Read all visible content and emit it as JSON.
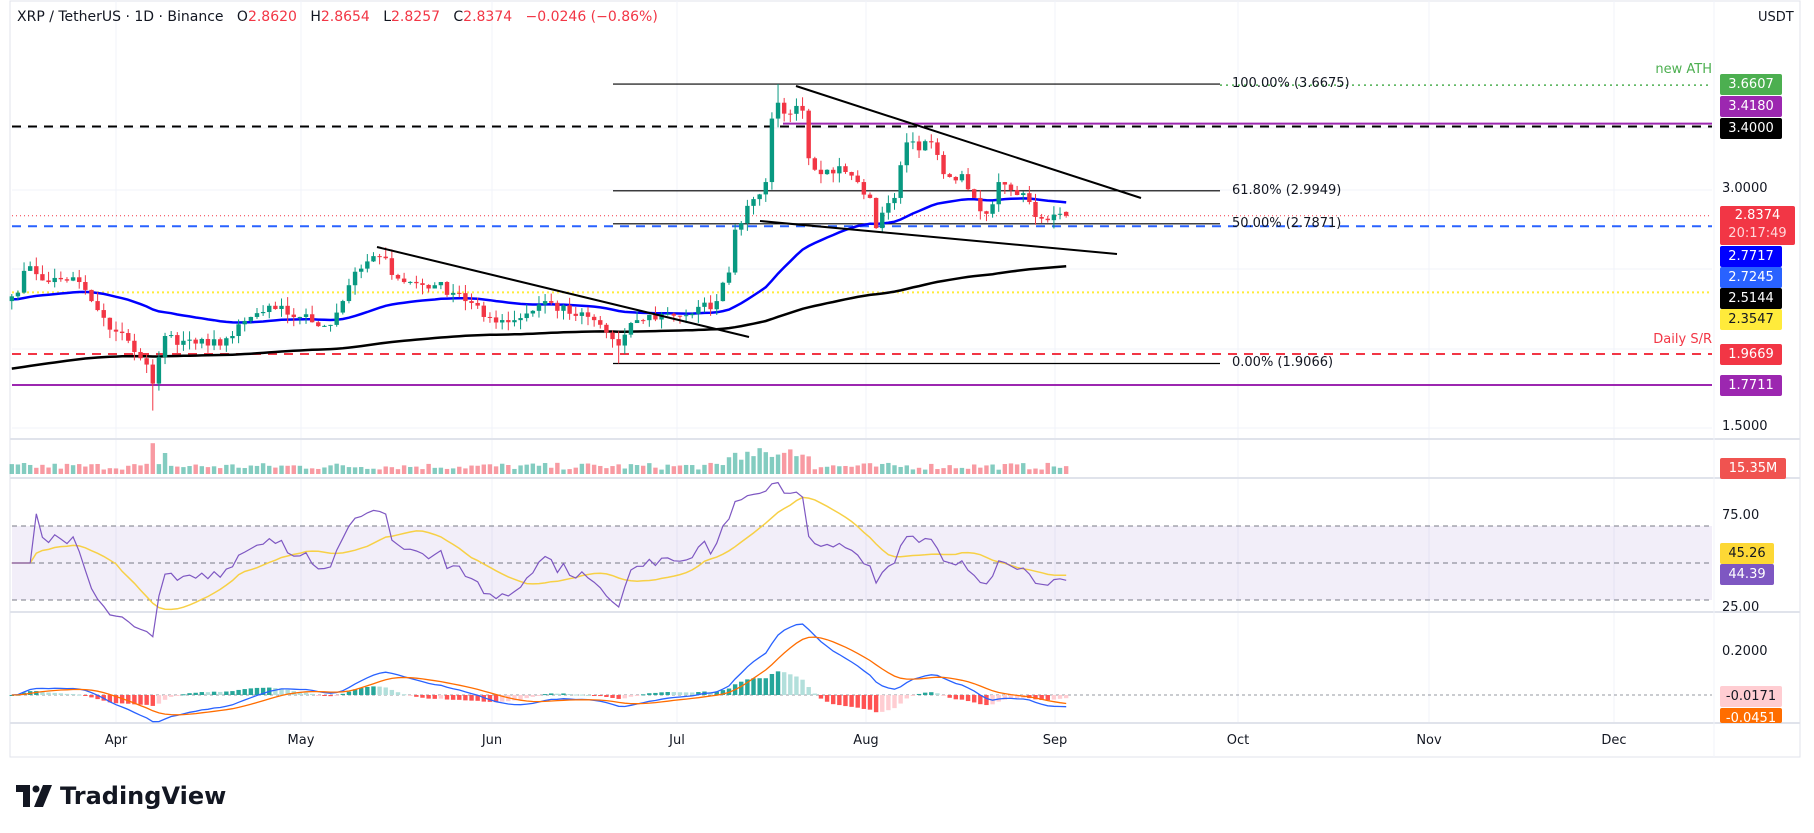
{
  "header": {
    "symbol": "XRP / TetherUS · 1D · Binance",
    "o_label": "O",
    "o": "2.8620",
    "h_label": "H",
    "h": "2.8654",
    "l_label": "L",
    "l": "2.8257",
    "c_label": "C",
    "c": "2.8374",
    "change": "−0.0246 (−0.86%)",
    "currency": "USDT"
  },
  "price_axis": {
    "ticks": [
      "3.0000",
      "1.5000"
    ],
    "labels": [
      {
        "text": "3.6607",
        "color": "#4caf50"
      },
      {
        "text": "3.4180",
        "color": "#9c27b0"
      },
      {
        "text": "3.4000",
        "color": "#000000"
      },
      {
        "text": "2.7717",
        "color": "#0000ff"
      },
      {
        "text": "2.7245",
        "color": "#2962ff"
      },
      {
        "text": "2.5144",
        "color": "#000000"
      },
      {
        "text": "2.3547",
        "color": "#ffeb3b"
      },
      {
        "text": "1.9669",
        "color": "#f23645"
      },
      {
        "text": "1.7711",
        "color": "#9c27b0"
      }
    ],
    "current_price": "2.8374",
    "countdown": "20:17:49"
  },
  "annotations": {
    "new_ath": "new ATH",
    "daily_sr": "Daily S/R",
    "fib": [
      "100.00% (3.6675)",
      "61.80% (2.9949)",
      "50.00% (2.7871)",
      "0.00% (1.9066)"
    ]
  },
  "volume": {
    "label": "15.35M"
  },
  "rsi": {
    "ticks": [
      "75.00",
      "25.00"
    ],
    "ma_value": "45.26",
    "rsi_value": "44.39"
  },
  "macd": {
    "ticks": [
      "0.2000"
    ],
    "histogram_value": "-0.0171",
    "signal_value": "-0.0451"
  },
  "x_axis": {
    "months": [
      "Apr",
      "May",
      "Jun",
      "Jul",
      "Aug",
      "Sep",
      "Oct",
      "Nov",
      "Dec"
    ]
  },
  "brand": {
    "name": "TradingView"
  },
  "colors": {
    "up": "#089981",
    "down": "#f23645",
    "ema50": "#0000ff",
    "ema200": "#000000",
    "rsi": "#7e57c2",
    "rsi_ma": "#f7d046",
    "macd": "#2962ff",
    "signal": "#ff6d00"
  },
  "chart_data": {
    "type": "candlestick",
    "symbol": "XRP/USDT",
    "interval": "1D",
    "approx_closes": [
      [
        "03-15",
        2.33
      ],
      [
        "03-18",
        2.52
      ],
      [
        "03-21",
        2.42
      ],
      [
        "03-25",
        2.45
      ],
      [
        "03-28",
        2.3
      ],
      [
        "03-31",
        2.12
      ],
      [
        "04-03",
        2.05
      ],
      [
        "04-06",
        1.9
      ],
      [
        "04-07",
        1.78
      ],
      [
        "04-09",
        2.08
      ],
      [
        "04-12",
        2.05
      ],
      [
        "04-16",
        2.02
      ],
      [
        "04-20",
        2.08
      ],
      [
        "04-23",
        2.2
      ],
      [
        "04-27",
        2.25
      ],
      [
        "05-01",
        2.2
      ],
      [
        "05-06",
        2.15
      ],
      [
        "05-09",
        2.4
      ],
      [
        "05-12",
        2.55
      ],
      [
        "05-14",
        2.58
      ],
      [
        "05-18",
        2.42
      ],
      [
        "05-23",
        2.4
      ],
      [
        "05-27",
        2.35
      ],
      [
        "05-31",
        2.2
      ],
      [
        "06-05",
        2.18
      ],
      [
        "06-10",
        2.3
      ],
      [
        "06-14",
        2.22
      ],
      [
        "06-18",
        2.18
      ],
      [
        "06-22",
        2.02
      ],
      [
        "06-25",
        2.18
      ],
      [
        "06-30",
        2.22
      ],
      [
        "07-04",
        2.22
      ],
      [
        "07-08",
        2.3
      ],
      [
        "07-10",
        2.48
      ],
      [
        "07-11",
        2.75
      ],
      [
        "07-13",
        2.9
      ],
      [
        "07-16",
        3.05
      ],
      [
        "07-17",
        3.45
      ],
      [
        "07-18",
        3.55
      ],
      [
        "07-20",
        3.48
      ],
      [
        "07-22",
        3.5
      ],
      [
        "07-23",
        3.2
      ],
      [
        "07-25",
        3.1
      ],
      [
        "07-28",
        3.15
      ],
      [
        "07-31",
        3.05
      ],
      [
        "08-02",
        2.95
      ],
      [
        "08-03",
        2.76
      ],
      [
        "08-06",
        2.95
      ],
      [
        "08-08",
        3.3
      ],
      [
        "08-10",
        3.25
      ],
      [
        "08-12",
        3.3
      ],
      [
        "08-14",
        3.1
      ],
      [
        "08-17",
        3.1
      ],
      [
        "08-19",
        2.95
      ],
      [
        "08-21",
        2.85
      ],
      [
        "08-23",
        3.05
      ],
      [
        "08-25",
        3.0
      ],
      [
        "08-27",
        2.98
      ],
      [
        "08-29",
        2.83
      ],
      [
        "08-31",
        2.81
      ],
      [
        "09-02",
        2.85
      ],
      [
        "09-03",
        2.8374
      ]
    ],
    "last_candle": {
      "open": 2.862,
      "high": 2.8654,
      "low": 2.8257,
      "close": 2.8374
    },
    "horizontal_levels": [
      3.6607,
      3.418,
      3.4,
      2.7717,
      2.3547,
      1.9669,
      1.7711
    ],
    "fibonacci": {
      "high": 3.6675,
      "low": 1.9066,
      "levels": [
        1.0,
        0.618,
        0.5,
        0.0
      ]
    },
    "moving_averages": [
      {
        "value": 2.7245,
        "color": "#0000ff"
      },
      {
        "value": 2.5144,
        "color": "#000000"
      }
    ],
    "rsi_bands": [
      70,
      50,
      30
    ],
    "yrange_price": [
      1.45,
      3.75
    ]
  }
}
